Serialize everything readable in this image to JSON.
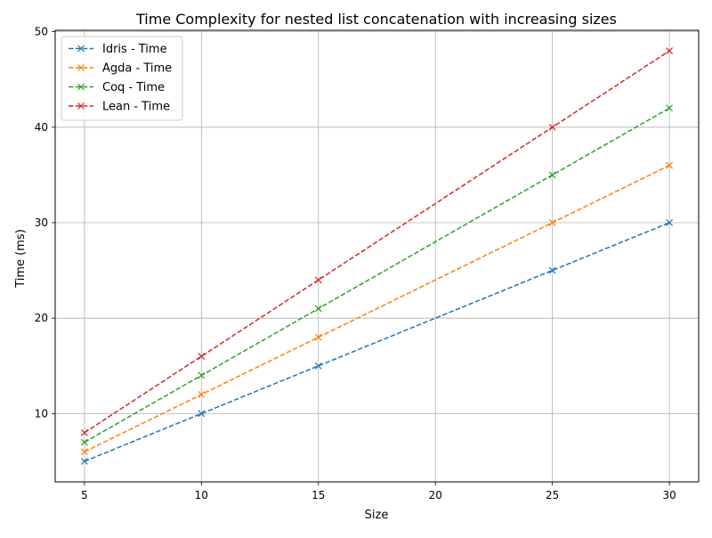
{
  "chart_data": {
    "type": "line",
    "title": "Time Complexity for nested list concatenation with increasing sizes",
    "xlabel": "Size",
    "ylabel": "Time (ms)",
    "x": [
      5,
      10,
      15,
      25,
      30
    ],
    "xlim": [
      3.75,
      31.25
    ],
    "ylim": [
      2.85,
      50.15
    ],
    "xticks": [
      5,
      10,
      15,
      20,
      25,
      30
    ],
    "yticks": [
      10,
      20,
      30,
      40,
      50
    ],
    "grid": true,
    "legend_position": "top-left",
    "line_style": "dashed",
    "marker": "x",
    "series": [
      {
        "name": "Idris - Time",
        "color": "#1f77b4",
        "values": [
          5,
          10,
          15,
          25,
          30
        ]
      },
      {
        "name": "Agda - Time",
        "color": "#ff7f0e",
        "values": [
          6,
          12,
          18,
          30,
          36
        ]
      },
      {
        "name": "Coq - Time",
        "color": "#2ca02c",
        "values": [
          7,
          14,
          21,
          35,
          42
        ]
      },
      {
        "name": "Lean - Time",
        "color": "#d62728",
        "values": [
          8,
          16,
          24,
          40,
          48
        ]
      }
    ]
  }
}
